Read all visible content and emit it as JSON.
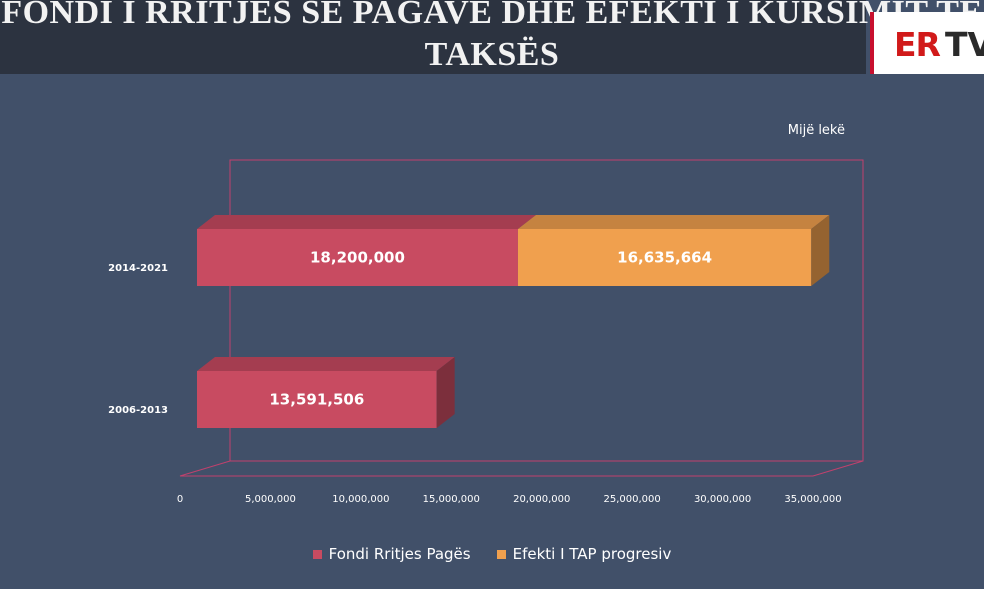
{
  "header": {
    "title_line1": "FONDI I RRITJES SË PAGAVE DHE EFEKTI I KURSIMIT TË",
    "title_line2": "TAKSËS"
  },
  "logo": {
    "text_er": "ER",
    "text_tv": "TV"
  },
  "colors": {
    "series_1": "#c84b61",
    "series_2": "#f0a04e",
    "frame": "#c1416d",
    "text": "#ffffff"
  },
  "chart_data": {
    "type": "bar",
    "orientation": "horizontal",
    "stacked": true,
    "style": "3d",
    "unit_label": "Mijë lekë",
    "categories": [
      "2014-2021",
      "2006-2013"
    ],
    "series": [
      {
        "name": "Fondi Rritjes Pagës",
        "values": [
          18200000,
          13591506
        ],
        "labels": [
          "18,200,000",
          "13,591,506"
        ]
      },
      {
        "name": "Efekti I TAP progresiv",
        "values": [
          16635664,
          null
        ],
        "labels": [
          "16,635,664",
          ""
        ]
      }
    ],
    "xlim": [
      0,
      35000000
    ],
    "x_ticks": [
      "0",
      "5,000,000",
      "10,000,000",
      "15,000,000",
      "20,000,000",
      "25,000,000",
      "30,000,000",
      "35,000,000"
    ],
    "grid": false,
    "legend_position": "bottom"
  }
}
